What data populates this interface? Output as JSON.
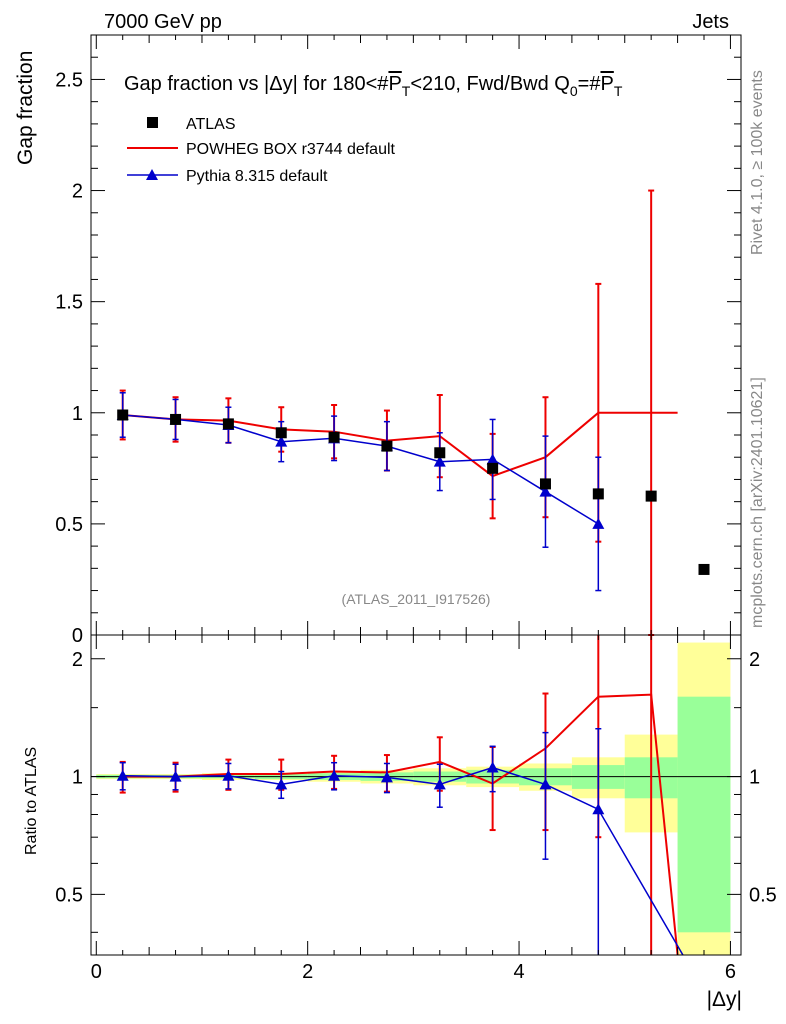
{
  "header": {
    "left": "7000 GeV pp",
    "right": "Jets"
  },
  "side": {
    "rivet": "Rivet 4.1.0, ≥ 100k events",
    "mcplots": "mcplots.cern.ch [arXiv:2401.10621]"
  },
  "colors": {
    "data": "#000000",
    "powheg": "#ee0000",
    "pythia": "#0000cc",
    "band_inner": "#99ff99",
    "band_outer": "#ffff99"
  },
  "chart_data": [
    {
      "type": "line",
      "title_main": "Gap fraction vs |Δy| for 180<#",
      "title_p": "P",
      "title_t": "T",
      "title_mid": "<210, Fwd/Bwd Q",
      "title_zero": "0",
      "title_eq": "=#",
      "ylabel": "Gap fraction",
      "watermark": "(ATLAS_2011_I917526)",
      "xlim": [
        -0.05,
        6.1
      ],
      "ylim": [
        0,
        2.7
      ],
      "yticks": [
        {
          "value": 0,
          "label": "0"
        },
        {
          "value": 0.5,
          "label": "0.5"
        },
        {
          "value": 1,
          "label": "1"
        },
        {
          "value": 1.5,
          "label": "1.5"
        },
        {
          "value": 2,
          "label": "2"
        },
        {
          "value": 2.5,
          "label": "2.5"
        }
      ],
      "legend": [
        {
          "key": "data",
          "label": "ATLAS"
        },
        {
          "key": "powheg",
          "label": "POWHEG BOX r3744 default"
        },
        {
          "key": "pythia",
          "label": "Pythia 8.315 default"
        }
      ],
      "data": {
        "x": [
          0.25,
          0.75,
          1.25,
          1.75,
          2.25,
          2.75,
          3.25,
          3.75,
          4.25,
          4.75,
          5.25,
          5.75
        ],
        "y": [
          0.99,
          0.97,
          0.95,
          0.91,
          0.89,
          0.85,
          0.82,
          0.75,
          0.68,
          0.635,
          0.625,
          0.295
        ]
      },
      "powheg": {
        "edges": [
          0.0,
          0.5,
          1.0,
          1.5,
          2.0,
          2.5,
          3.0,
          3.5,
          4.0,
          4.5,
          5.0,
          5.5
        ],
        "y": [
          0.99,
          0.97,
          0.965,
          0.925,
          0.915,
          0.875,
          0.895,
          0.715,
          0.8,
          1.0,
          1.0
        ],
        "err": [
          0.11,
          0.1,
          0.1,
          0.1,
          0.12,
          0.135,
          0.185,
          0.19,
          0.27,
          0.58,
          1.0
        ]
      },
      "pythia": {
        "x": [
          0.25,
          0.75,
          1.25,
          1.75,
          2.25,
          2.75,
          3.25,
          3.75,
          4.25,
          4.75
        ],
        "y": [
          0.99,
          0.97,
          0.945,
          0.87,
          0.885,
          0.85,
          0.78,
          0.79,
          0.645,
          0.5
        ],
        "err": [
          0.1,
          0.09,
          0.08,
          0.09,
          0.1,
          0.11,
          0.13,
          0.18,
          0.25,
          0.3
        ]
      }
    },
    {
      "type": "line",
      "ylabel": "Ratio to ATLAS",
      "xlabel": "|Δy|",
      "xlim": [
        -0.05,
        6.1
      ],
      "ylim": [
        0.35,
        2.3
      ],
      "yscale": "log",
      "yticks": [
        {
          "value": 0.5,
          "label": "0.5"
        },
        {
          "value": 1,
          "label": "1"
        },
        {
          "value": 2,
          "label": "2"
        }
      ],
      "xticks": [
        {
          "value": 0,
          "label": "0"
        },
        {
          "value": 2,
          "label": "2"
        },
        {
          "value": 4,
          "label": "4"
        },
        {
          "value": 6,
          "label": "6"
        }
      ],
      "bands": {
        "edges": [
          0.0,
          0.5,
          1.0,
          1.5,
          2.0,
          2.5,
          3.0,
          3.5,
          4.0,
          4.5,
          5.0,
          5.5,
          6.0
        ],
        "inner": [
          0.01,
          0.01,
          0.01,
          0.015,
          0.02,
          0.025,
          0.03,
          0.04,
          0.05,
          0.07,
          0.12,
          0.6
        ],
        "outer": [
          0.015,
          0.015,
          0.02,
          0.02,
          0.03,
          0.04,
          0.05,
          0.06,
          0.08,
          0.12,
          0.28,
          1.2
        ]
      },
      "powheg": {
        "edges": [
          0.0,
          0.5,
          1.0,
          1.5,
          2.0,
          2.5,
          3.0,
          3.5,
          4.0,
          4.5,
          5.0,
          5.5
        ],
        "y": [
          1.0,
          1.0,
          1.015,
          1.015,
          1.03,
          1.025,
          1.09,
          0.96,
          1.18,
          1.6,
          1.62
        ],
        "err": [
          0.09,
          0.085,
          0.09,
          0.09,
          0.1,
          0.11,
          0.17,
          0.23,
          0.45,
          0.9,
          1.8
        ],
        "drop": {
          "x0": 5.25,
          "y0": 1.62,
          "x1": 5.5,
          "y1": 0.33
        }
      },
      "pythia": {
        "x": [
          0.25,
          0.75,
          1.25,
          1.75,
          2.25,
          2.75,
          3.25,
          3.75,
          4.25,
          4.75
        ],
        "y": [
          1.005,
          1.0,
          1.005,
          0.955,
          1.005,
          0.995,
          0.955,
          1.055,
          0.955,
          0.825
        ],
        "err": [
          0.08,
          0.075,
          0.075,
          0.075,
          0.08,
          0.085,
          0.12,
          0.14,
          0.34,
          0.5
        ],
        "drop": {
          "x0": 4.75,
          "y0": 0.825,
          "x1": 5.55,
          "y1": 0.33
        }
      }
    }
  ]
}
